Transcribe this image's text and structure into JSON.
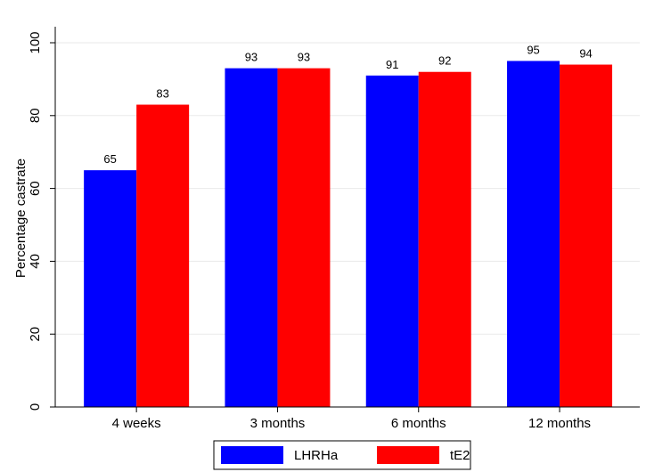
{
  "chart_data": {
    "type": "bar",
    "y_label": "Percentage castrate",
    "categories": [
      "4 weeks",
      "3 months",
      "6 months",
      "12 months"
    ],
    "series": [
      {
        "name": "LHRHa",
        "color": "#0000ff",
        "values": [
          65,
          93,
          91,
          95
        ]
      },
      {
        "name": "tE2",
        "color": "#ff0000",
        "values": [
          83,
          93,
          92,
          94
        ]
      }
    ],
    "ylim": [
      0,
      100
    ],
    "yticks": [
      0,
      20,
      40,
      60,
      80,
      100
    ],
    "grid": true,
    "legend": "bottom"
  }
}
